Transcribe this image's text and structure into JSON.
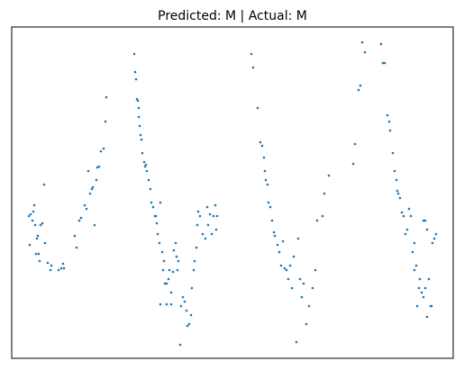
{
  "chart_data": {
    "type": "scatter",
    "title": "Predicted: M | Actual: M",
    "color": "#1f77b4",
    "xlim": [
      13,
      503
    ],
    "ylim": [
      2,
      370
    ],
    "x": [
      32,
      33,
      34,
      36,
      37,
      38,
      39,
      40,
      41,
      42,
      43,
      44,
      45,
      47,
      49,
      50,
      53,
      56,
      57,
      65,
      68,
      70,
      71,
      83,
      85,
      88,
      90,
      94,
      96,
      98,
      100,
      102,
      103,
      105,
      107,
      108,
      110,
      112,
      115,
      117,
      118,
      149,
      150,
      151,
      152,
      153,
      154,
      154,
      155,
      156,
      157,
      158,
      160,
      161,
      162,
      163,
      165,
      167,
      168,
      170,
      172,
      173,
      174,
      175,
      177,
      178,
      180,
      181,
      182,
      183,
      185,
      187,
      188,
      190,
      192,
      193,
      195,
      196,
      197,
      198,
      200,
      201,
      203,
      205,
      207,
      208,
      210,
      212,
      213,
      215,
      216,
      218,
      219,
      220,
      222,
      225,
      228,
      230,
      231,
      233,
      235,
      237,
      239,
      240,
      241,
      178,
      185,
      190,
      279,
      281,
      286,
      289,
      291,
      293,
      294,
      295,
      297,
      298,
      300,
      302,
      304,
      305,
      308,
      310,
      312,
      314,
      316,
      318,
      320,
      322,
      324,
      326,
      329,
      331,
      333,
      335,
      337,
      340,
      343,
      347,
      350,
      352,
      358,
      360,
      365,
      392,
      394,
      398,
      400,
      402,
      405,
      423,
      425,
      427,
      430,
      432,
      433,
      436,
      438,
      440,
      441,
      442,
      444,
      446,
      448,
      450,
      452,
      454,
      456,
      458,
      460,
      462,
      463,
      465,
      466,
      468,
      470,
      472,
      474,
      476,
      478,
      479,
      480,
      482,
      484,
      470,
      472,
      474,
      460
    ],
    "values": [
      160,
      128,
      162,
      155,
      165,
      172,
      150,
      118,
      135,
      138,
      118,
      110,
      150,
      152,
      195,
      130,
      108,
      100,
      105,
      100,
      102,
      107,
      102,
      138,
      125,
      155,
      158,
      172,
      168,
      210,
      185,
      190,
      192,
      150,
      200,
      214,
      215,
      232,
      235,
      265,
      292,
      340,
      320,
      312,
      290,
      288,
      280,
      270,
      260,
      250,
      245,
      230,
      220,
      215,
      217,
      210,
      200,
      190,
      175,
      170,
      160,
      160,
      152,
      140,
      130,
      175,
      120,
      100,
      110,
      85,
      85,
      90,
      100,
      75,
      98,
      122,
      130,
      115,
      100,
      110,
      17,
      60,
      70,
      65,
      55,
      38,
      40,
      50,
      80,
      100,
      110,
      125,
      150,
      165,
      160,
      140,
      135,
      170,
      150,
      162,
      140,
      160,
      172,
      145,
      160,
      62,
      62,
      62,
      340,
      325,
      280,
      242,
      238,
      225,
      210,
      200,
      195,
      175,
      170,
      155,
      142,
      138,
      128,
      120,
      105,
      132,
      102,
      100,
      90,
      105,
      80,
      115,
      20,
      135,
      90,
      70,
      85,
      40,
      60,
      80,
      100,
      155,
      160,
      185,
      205,
      218,
      240,
      300,
      305,
      353,
      342,
      351,
      330,
      330,
      272,
      265,
      255,
      230,
      210,
      200,
      188,
      185,
      180,
      164,
      160,
      140,
      145,
      168,
      160,
      120,
      100,
      105,
      60,
      80,
      90,
      75,
      70,
      80,
      48,
      90,
      60,
      60,
      130,
      135,
      140,
      155,
      155,
      145,
      130
    ]
  }
}
